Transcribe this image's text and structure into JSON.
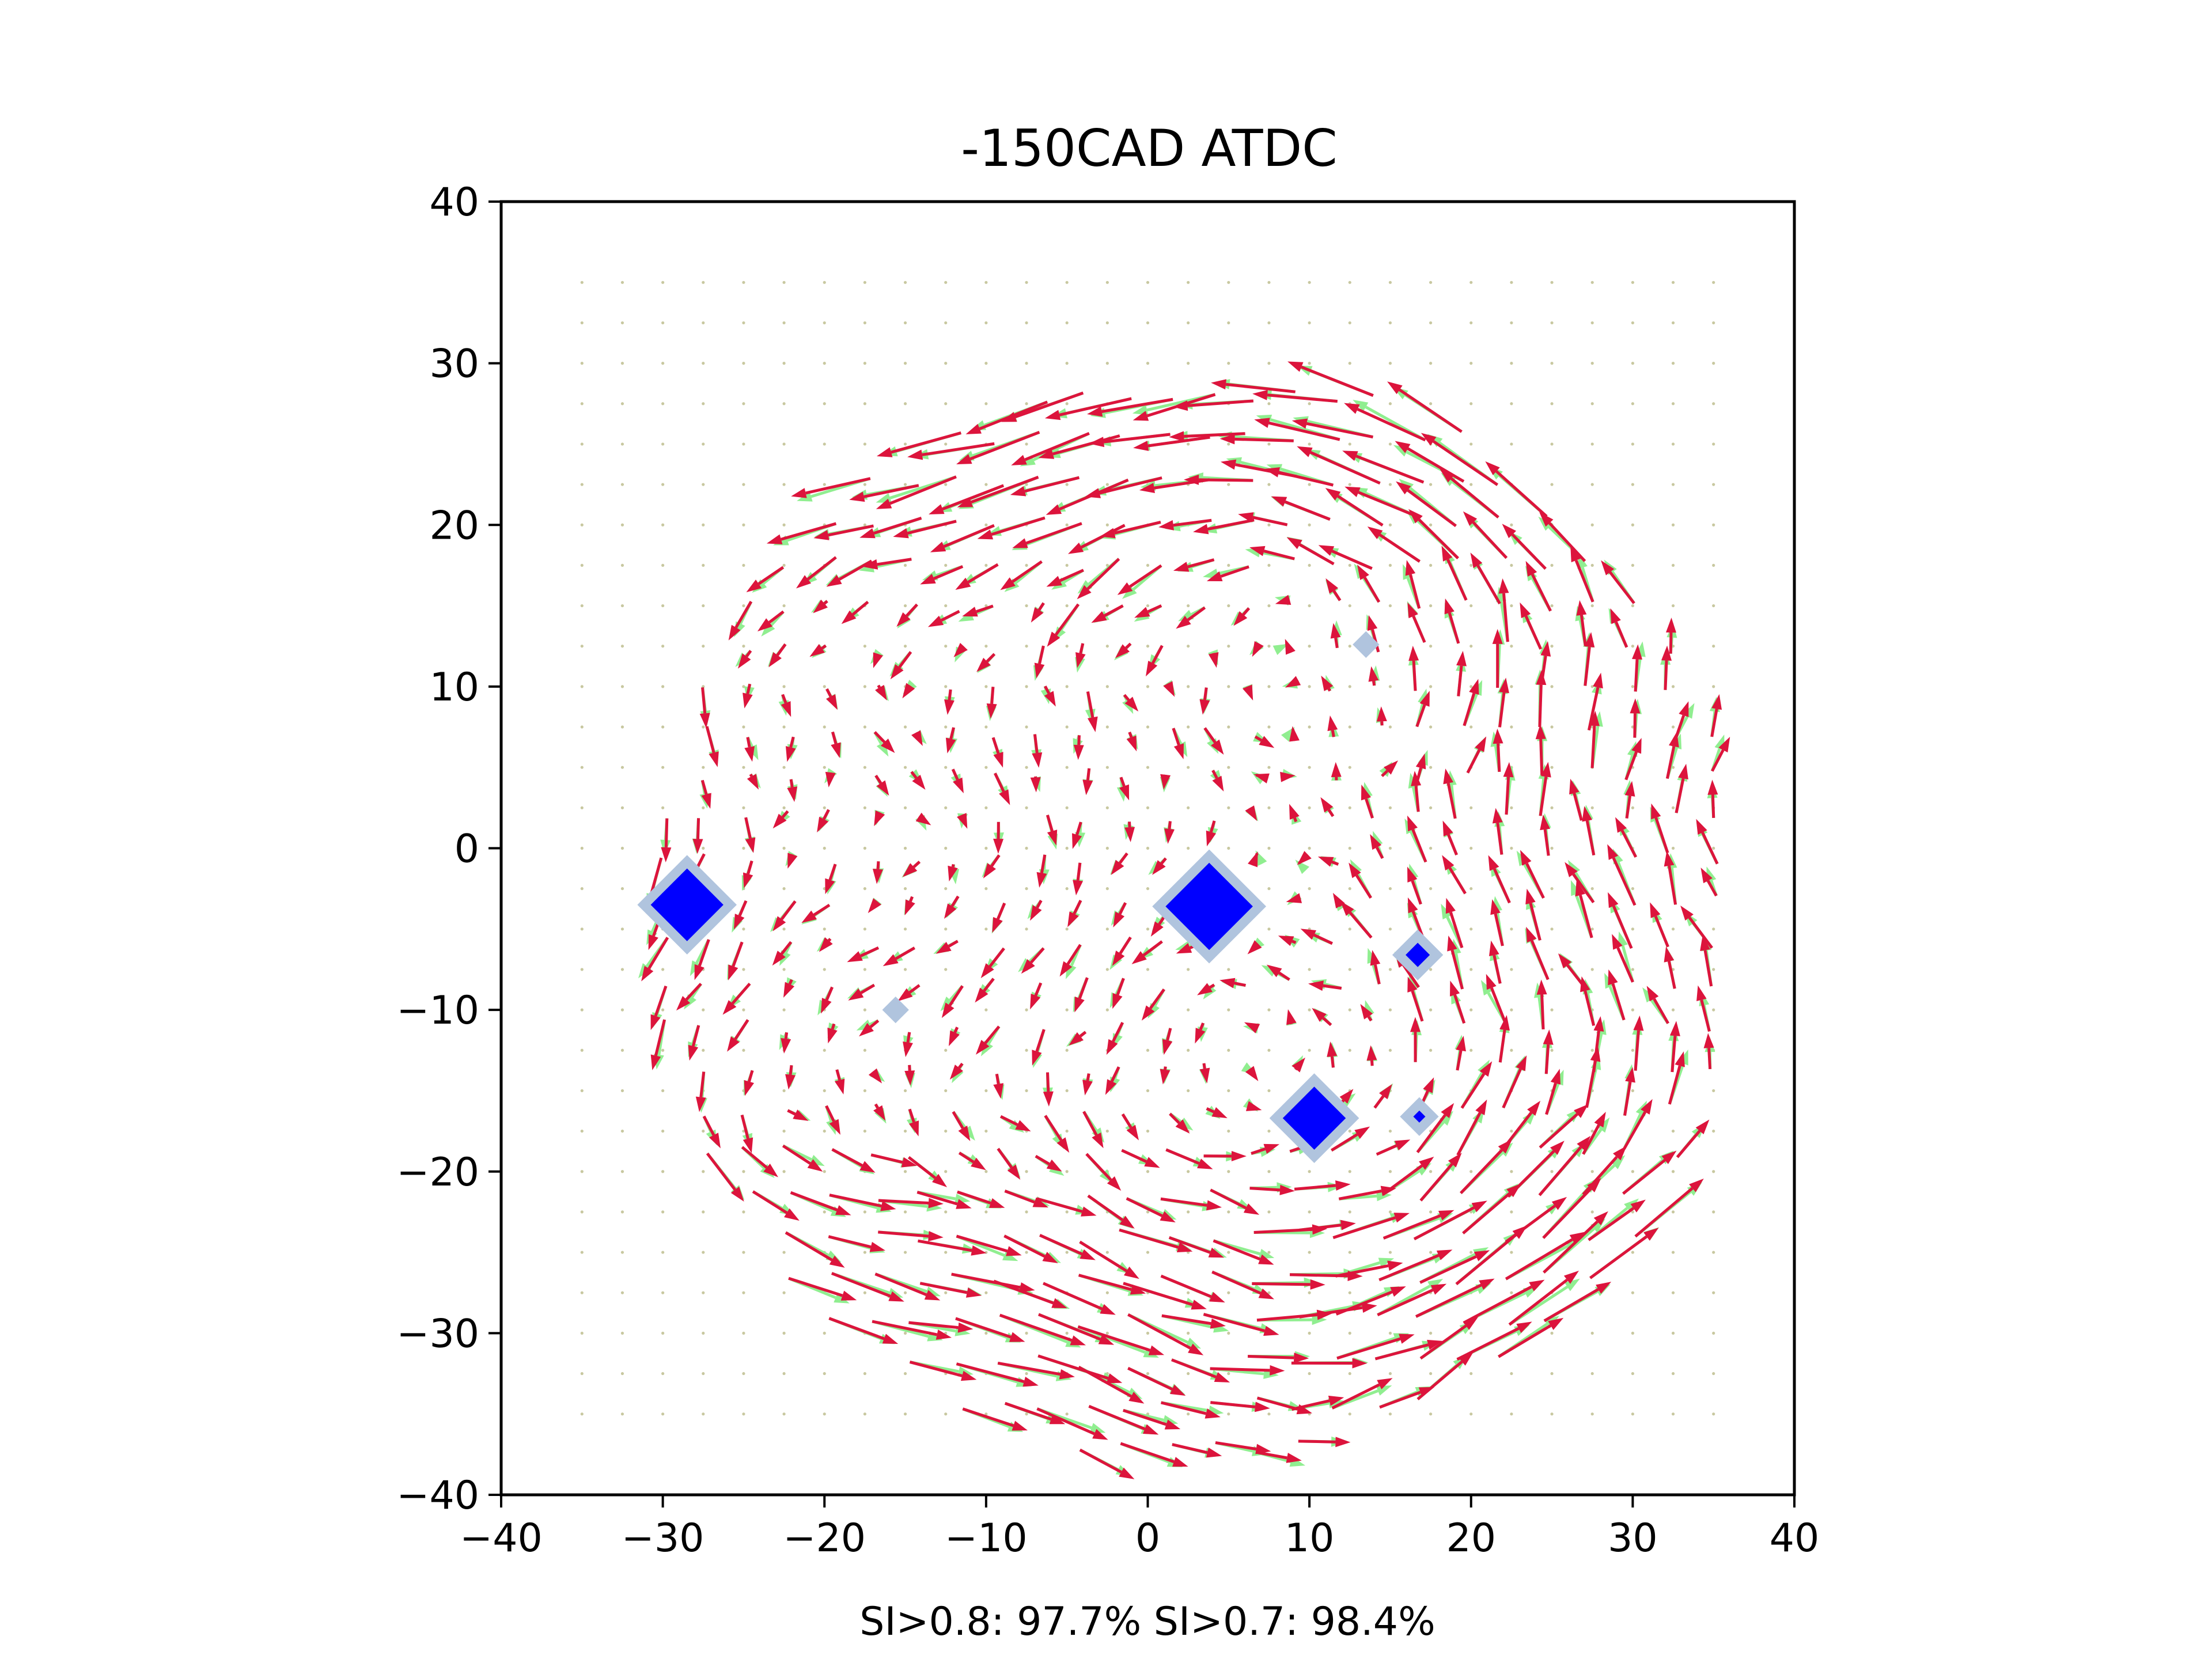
{
  "chart_data": {
    "type": "quiver",
    "title": "-150CAD ATDC",
    "xlabel": "SI>0.8: 97.7%  SI>0.7: 98.4%",
    "ylabel": "",
    "xlim": [
      -40,
      40
    ],
    "ylim": [
      -40,
      40
    ],
    "xticks": [
      -40,
      -30,
      -20,
      -10,
      0,
      10,
      20,
      30,
      40
    ],
    "yticks": [
      -40,
      -30,
      -20,
      -10,
      0,
      10,
      20,
      30,
      40
    ],
    "xtick_labels": [
      "−40",
      "−30",
      "−20",
      "−10",
      "0",
      "10",
      "20",
      "30",
      "40"
    ],
    "ytick_labels": [
      "−40",
      "−30",
      "−20",
      "−10",
      "0",
      "10",
      "20",
      "30",
      "40"
    ],
    "grid": false,
    "colors": {
      "series_a": "#dc143c",
      "series_b": "#90ee90",
      "marker_fill": "#0000ff",
      "marker_halo": "#b0c4de",
      "background_dots": "#c8c8a0"
    },
    "field_region": {
      "center": [
        3,
        -4
      ],
      "radius": 32
    },
    "markers": [
      {
        "x": -28.5,
        "y": -3.5,
        "size": 3.0
      },
      {
        "x": 3.8,
        "y": -3.6,
        "size": 3.6
      },
      {
        "x": 10.3,
        "y": -16.7,
        "size": 2.6
      },
      {
        "x": 16.7,
        "y": -6.6,
        "size": 1.0
      },
      {
        "x": 16.8,
        "y": -16.6,
        "size": 0.5
      },
      {
        "x": -15.6,
        "y": -10.0,
        "size": 0.0
      },
      {
        "x": 13.5,
        "y": 12.6,
        "size": 0.0
      }
    ],
    "annotations": []
  }
}
